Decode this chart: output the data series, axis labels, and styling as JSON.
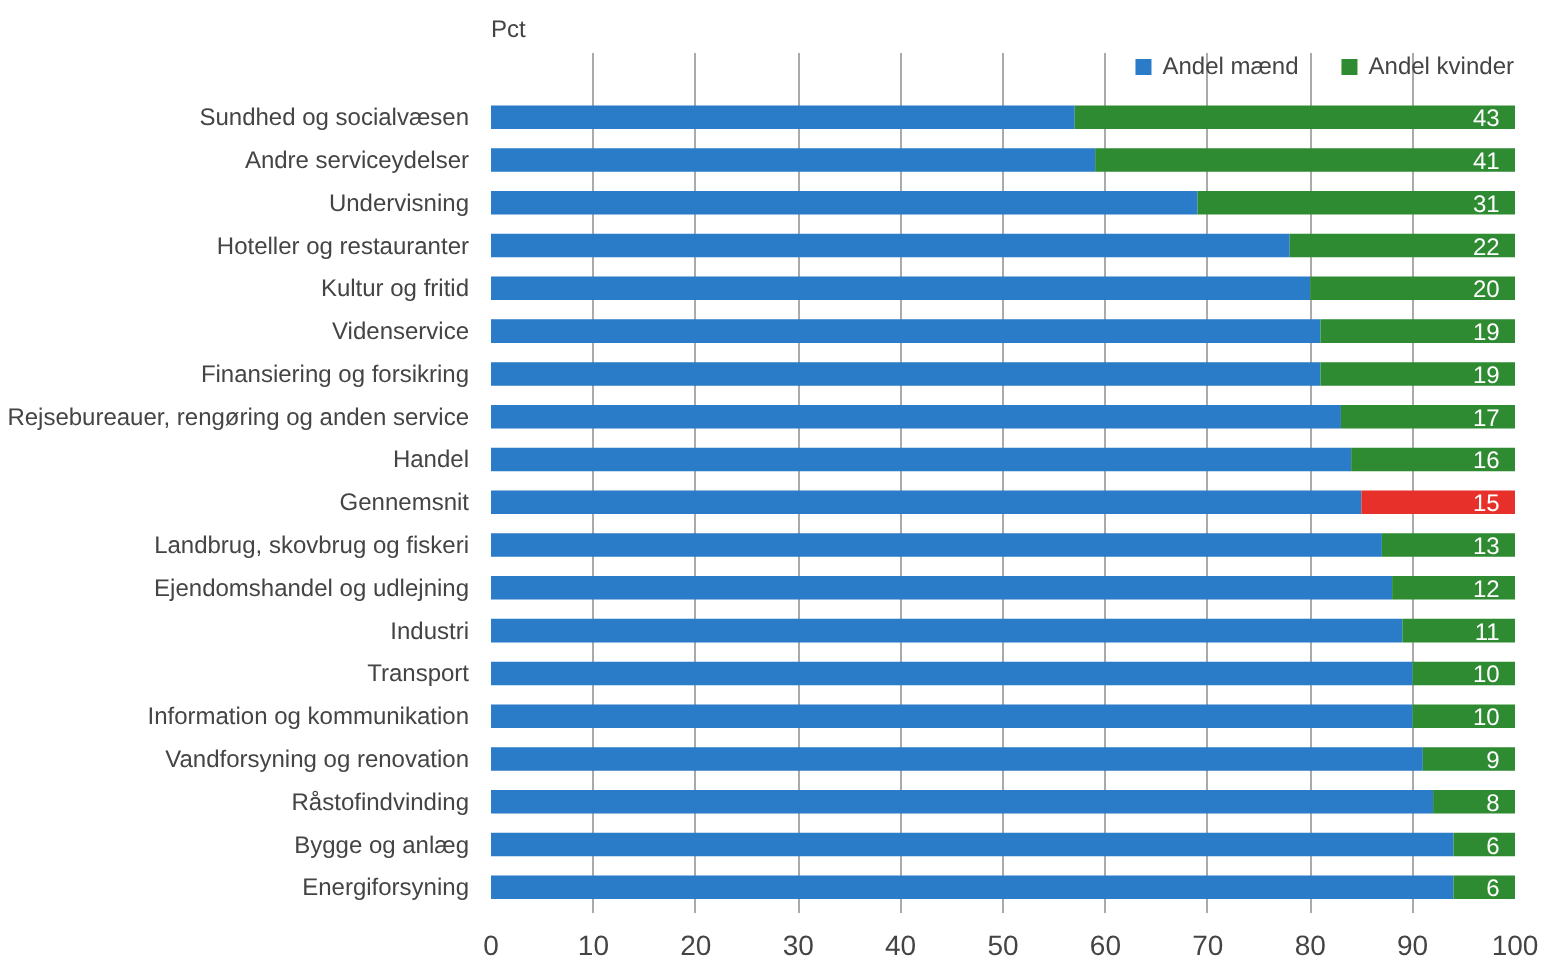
{
  "chart_data": {
    "type": "bar",
    "orientation": "horizontal",
    "stacked": true,
    "categories": [
      "Sundhed og socialvæsen",
      "Andre serviceydelser",
      "Undervisning",
      "Hoteller og restauranter",
      "Kultur og fritid",
      "Videnservice",
      "Finansiering og forsikring",
      "Rejsebureauer, rengøring og anden service",
      "Handel",
      "Gennemsnit",
      "Landbrug, skovbrug og fiskeri",
      "Ejendomshandel og udlejning",
      "Industri",
      "Transport",
      "Information og kommunikation",
      "Vandforsyning og renovation",
      "Råstofindvinding",
      "Bygge og anlæg",
      "Energiforsyning"
    ],
    "series": [
      {
        "name": "Andel mænd",
        "color": "#2a7bc8",
        "values": [
          57,
          59,
          69,
          78,
          80,
          81,
          81,
          83,
          84,
          85,
          87,
          88,
          89,
          90,
          90,
          91,
          92,
          94,
          94
        ]
      },
      {
        "name": "Andel kvinder",
        "color": "#2e8b32",
        "colors": [
          null,
          null,
          null,
          null,
          null,
          null,
          null,
          null,
          null,
          "#e8302a",
          null,
          null,
          null,
          null,
          null,
          null,
          null,
          null,
          null
        ],
        "values": [
          43,
          41,
          31,
          22,
          20,
          19,
          19,
          17,
          16,
          15,
          13,
          12,
          11,
          10,
          10,
          9,
          8,
          6,
          6
        ],
        "value_labels": [
          "43",
          "41",
          "31",
          "22",
          "20",
          "19",
          "19",
          "17",
          "16",
          "15",
          "13",
          "12",
          "11",
          "10",
          "10",
          "9",
          "8",
          "6",
          "6"
        ]
      }
    ],
    "xlim": [
      0,
      100
    ],
    "xticks": [
      0,
      10,
      20,
      30,
      40,
      50,
      60,
      70,
      80,
      90,
      100
    ],
    "grid": "x",
    "legend": "top right",
    "annotations": [
      "Pct"
    ]
  }
}
